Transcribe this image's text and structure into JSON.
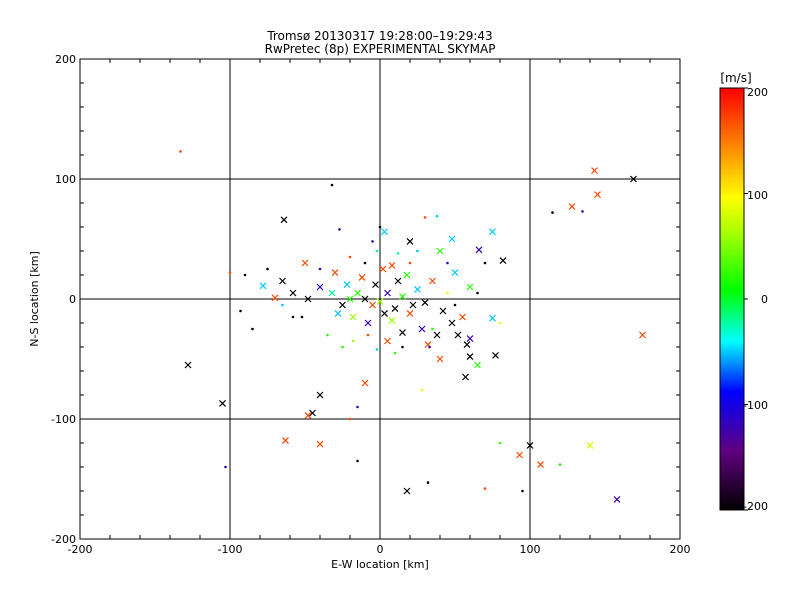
{
  "chart_data": {
    "type": "scatter",
    "title": "Tromsø 20130317 19:28:00–19:29:43",
    "subtitle": "RwPretec (8p) EXPERIMENTAL SKYMAP",
    "xlabel": "E-W location [km]",
    "ylabel": "N-S location [km]",
    "xlim": [
      -200,
      200
    ],
    "ylim": [
      -200,
      200
    ],
    "xticks": [
      "-200",
      "-100",
      "0",
      "100",
      "200"
    ],
    "yticks": [
      "-200",
      "-100",
      "0",
      "100",
      "200"
    ],
    "grid": true,
    "colorbar": {
      "label": "[m/s]",
      "min": -200,
      "max": 200,
      "ticks": [
        "200",
        "100",
        "0",
        "-100",
        "-200"
      ]
    },
    "points": [
      {
        "x": -133,
        "y": 123,
        "v": 170,
        "m": "."
      },
      {
        "x": 143,
        "y": 107,
        "v": 170,
        "m": "x"
      },
      {
        "x": 169,
        "y": 100,
        "v": -200,
        "m": "x"
      },
      {
        "x": -32,
        "y": 95,
        "v": -200,
        "m": "."
      },
      {
        "x": 145,
        "y": 87,
        "v": 170,
        "m": "x"
      },
      {
        "x": 128,
        "y": 77,
        "v": 170,
        "m": "x"
      },
      {
        "x": 135,
        "y": 73,
        "v": -120,
        "m": "."
      },
      {
        "x": 115,
        "y": 72,
        "v": -200,
        "m": "."
      },
      {
        "x": -64,
        "y": 66,
        "v": -200,
        "m": "x"
      },
      {
        "x": 30,
        "y": 68,
        "v": 170,
        "m": "."
      },
      {
        "x": 38,
        "y": 69,
        "v": -50,
        "m": "."
      },
      {
        "x": 3,
        "y": 56,
        "v": -50,
        "m": "x"
      },
      {
        "x": 75,
        "y": 56,
        "v": -50,
        "m": "x"
      },
      {
        "x": -27,
        "y": 58,
        "v": -120,
        "m": "."
      },
      {
        "x": 20,
        "y": 48,
        "v": -200,
        "m": "x"
      },
      {
        "x": 48,
        "y": 50,
        "v": -50,
        "m": "x"
      },
      {
        "x": 66,
        "y": 41,
        "v": -120,
        "m": "x"
      },
      {
        "x": 40,
        "y": 40,
        "v": 20,
        "m": "x"
      },
      {
        "x": 82,
        "y": 32,
        "v": -200,
        "m": "x"
      },
      {
        "x": -2,
        "y": 40,
        "v": -20,
        "m": "."
      },
      {
        "x": -50,
        "y": 30,
        "v": 170,
        "m": "x"
      },
      {
        "x": -65,
        "y": 15,
        "v": -200,
        "m": "x"
      },
      {
        "x": -78,
        "y": 11,
        "v": -50,
        "m": "x"
      },
      {
        "x": -90,
        "y": 20,
        "v": -200,
        "m": "."
      },
      {
        "x": -58,
        "y": 5,
        "v": -200,
        "m": "x"
      },
      {
        "x": -70,
        "y": 1,
        "v": 170,
        "m": "x"
      },
      {
        "x": -48,
        "y": 0,
        "v": -200,
        "m": "x"
      },
      {
        "x": -40,
        "y": 10,
        "v": -120,
        "m": "x"
      },
      {
        "x": -30,
        "y": 22,
        "v": 170,
        "m": "x"
      },
      {
        "x": -22,
        "y": 12,
        "v": -50,
        "m": "x"
      },
      {
        "x": -15,
        "y": 5,
        "v": 20,
        "m": "x"
      },
      {
        "x": -10,
        "y": 0,
        "v": -200,
        "m": "x"
      },
      {
        "x": -5,
        "y": -5,
        "v": 170,
        "m": "x"
      },
      {
        "x": 0,
        "y": -2,
        "v": 60,
        "m": "x"
      },
      {
        "x": 5,
        "y": 5,
        "v": -120,
        "m": "x"
      },
      {
        "x": 10,
        "y": -8,
        "v": -200,
        "m": "x"
      },
      {
        "x": 15,
        "y": 2,
        "v": 20,
        "m": "x"
      },
      {
        "x": 20,
        "y": -12,
        "v": 170,
        "m": "x"
      },
      {
        "x": 25,
        "y": 8,
        "v": -50,
        "m": "x"
      },
      {
        "x": 30,
        "y": -3,
        "v": -200,
        "m": "x"
      },
      {
        "x": 35,
        "y": 15,
        "v": 170,
        "m": "x"
      },
      {
        "x": 42,
        "y": -10,
        "v": -200,
        "m": "x"
      },
      {
        "x": 50,
        "y": 22,
        "v": -50,
        "m": "x"
      },
      {
        "x": 55,
        "y": -15,
        "v": 170,
        "m": "x"
      },
      {
        "x": 60,
        "y": 10,
        "v": 20,
        "m": "x"
      },
      {
        "x": 48,
        "y": -20,
        "v": -200,
        "m": "x"
      },
      {
        "x": 38,
        "y": -30,
        "v": -200,
        "m": "x"
      },
      {
        "x": 28,
        "y": -25,
        "v": -120,
        "m": "x"
      },
      {
        "x": 15,
        "y": -28,
        "v": -200,
        "m": "x"
      },
      {
        "x": 5,
        "y": -35,
        "v": 170,
        "m": "x"
      },
      {
        "x": -8,
        "y": -20,
        "v": -120,
        "m": "x"
      },
      {
        "x": -18,
        "y": -15,
        "v": 60,
        "m": "x"
      },
      {
        "x": -25,
        "y": -5,
        "v": -200,
        "m": "x"
      },
      {
        "x": -32,
        "y": 5,
        "v": -20,
        "m": "x"
      },
      {
        "x": -12,
        "y": 18,
        "v": 170,
        "m": "x"
      },
      {
        "x": 2,
        "y": 25,
        "v": 170,
        "m": "x"
      },
      {
        "x": 8,
        "y": 28,
        "v": 170,
        "m": "x"
      },
      {
        "x": 12,
        "y": 15,
        "v": -200,
        "m": "x"
      },
      {
        "x": 18,
        "y": 20,
        "v": 20,
        "m": "x"
      },
      {
        "x": -3,
        "y": 12,
        "v": -200,
        "m": "x"
      },
      {
        "x": 3,
        "y": -12,
        "v": -200,
        "m": "x"
      },
      {
        "x": 8,
        "y": -18,
        "v": 60,
        "m": "x"
      },
      {
        "x": -20,
        "y": 0,
        "v": 20,
        "m": "x"
      },
      {
        "x": -28,
        "y": -12,
        "v": -50,
        "m": "x"
      },
      {
        "x": 22,
        "y": -5,
        "v": -200,
        "m": "x"
      },
      {
        "x": 32,
        "y": -38,
        "v": 170,
        "m": "x"
      },
      {
        "x": 58,
        "y": -38,
        "v": -200,
        "m": "x"
      },
      {
        "x": 52,
        "y": -30,
        "v": -200,
        "m": "x"
      },
      {
        "x": 60,
        "y": -48,
        "v": -200,
        "m": "x"
      },
      {
        "x": 65,
        "y": -55,
        "v": 20,
        "m": "x"
      },
      {
        "x": 57,
        "y": -65,
        "v": -200,
        "m": "x"
      },
      {
        "x": 77,
        "y": -47,
        "v": -200,
        "m": "x"
      },
      {
        "x": 75,
        "y": -16,
        "v": -50,
        "m": "x"
      },
      {
        "x": 40,
        "y": -50,
        "v": 170,
        "m": "x"
      },
      {
        "x": 60,
        "y": -33,
        "v": -120,
        "m": "x"
      },
      {
        "x": 175,
        "y": -30,
        "v": 170,
        "m": "x"
      },
      {
        "x": -128,
        "y": -55,
        "v": -200,
        "m": "x"
      },
      {
        "x": -105,
        "y": -87,
        "v": -200,
        "m": "x"
      },
      {
        "x": -10,
        "y": -70,
        "v": 170,
        "m": "x"
      },
      {
        "x": -40,
        "y": -80,
        "v": -200,
        "m": "x"
      },
      {
        "x": -45,
        "y": -95,
        "v": -200,
        "m": "x"
      },
      {
        "x": -48,
        "y": -97,
        "v": 170,
        "m": "x"
      },
      {
        "x": -63,
        "y": -118,
        "v": 170,
        "m": "x"
      },
      {
        "x": -40,
        "y": -121,
        "v": 170,
        "m": "x"
      },
      {
        "x": 100,
        "y": -122,
        "v": -200,
        "m": "x"
      },
      {
        "x": 93,
        "y": -130,
        "v": 170,
        "m": "x"
      },
      {
        "x": 107,
        "y": -138,
        "v": 170,
        "m": "x"
      },
      {
        "x": 140,
        "y": -122,
        "v": 80,
        "m": "x"
      },
      {
        "x": 18,
        "y": -160,
        "v": -200,
        "m": "x"
      },
      {
        "x": 158,
        "y": -167,
        "v": -120,
        "m": "x"
      },
      {
        "x": -103,
        "y": -140,
        "v": -120,
        "m": "."
      },
      {
        "x": 80,
        "y": -120,
        "v": 20,
        "m": "."
      },
      {
        "x": 120,
        "y": -138,
        "v": 20,
        "m": "."
      },
      {
        "x": 95,
        "y": -160,
        "v": -200,
        "m": "."
      },
      {
        "x": 32,
        "y": -153,
        "v": -200,
        "m": "."
      },
      {
        "x": -20,
        "y": -100,
        "v": 170,
        "m": "."
      },
      {
        "x": -15,
        "y": -90,
        "v": -120,
        "m": "."
      },
      {
        "x": -15,
        "y": -135,
        "v": -200,
        "m": "."
      },
      {
        "x": 70,
        "y": -158,
        "v": 170,
        "m": "."
      },
      {
        "x": -85,
        "y": -25,
        "v": -200,
        "m": "."
      },
      {
        "x": -93,
        "y": -10,
        "v": -200,
        "m": "."
      },
      {
        "x": -58,
        "y": -15,
        "v": -200,
        "m": "."
      },
      {
        "x": -52,
        "y": -15,
        "v": -200,
        "m": "."
      },
      {
        "x": 28,
        "y": -76,
        "v": 100,
        "m": "."
      },
      {
        "x": 70,
        "y": 30,
        "v": -200,
        "m": "."
      },
      {
        "x": 80,
        "y": -20,
        "v": 100,
        "m": "."
      },
      {
        "x": 12,
        "y": 38,
        "v": -20,
        "m": "."
      },
      {
        "x": -5,
        "y": 48,
        "v": -120,
        "m": "."
      },
      {
        "x": -20,
        "y": 35,
        "v": 170,
        "m": "."
      },
      {
        "x": 45,
        "y": 30,
        "v": -120,
        "m": "."
      },
      {
        "x": -35,
        "y": -30,
        "v": 20,
        "m": "."
      },
      {
        "x": -25,
        "y": -40,
        "v": 20,
        "m": "."
      },
      {
        "x": 10,
        "y": -45,
        "v": 20,
        "m": "."
      },
      {
        "x": -18,
        "y": -35,
        "v": 60,
        "m": "."
      },
      {
        "x": 35,
        "y": -25,
        "v": 20,
        "m": "."
      },
      {
        "x": -40,
        "y": 25,
        "v": -120,
        "m": "."
      },
      {
        "x": 20,
        "y": 30,
        "v": 170,
        "m": "."
      },
      {
        "x": -8,
        "y": -30,
        "v": 170,
        "m": "."
      },
      {
        "x": 65,
        "y": 5,
        "v": -200,
        "m": "."
      },
      {
        "x": 45,
        "y": 5,
        "v": 100,
        "m": "."
      },
      {
        "x": -65,
        "y": -5,
        "v": -50,
        "m": "."
      },
      {
        "x": -100,
        "y": 22,
        "v": 170,
        "m": "."
      },
      {
        "x": -75,
        "y": 25,
        "v": -200,
        "m": "."
      },
      {
        "x": 0,
        "y": 60,
        "v": -200,
        "m": "."
      },
      {
        "x": 25,
        "y": 40,
        "v": -50,
        "m": "."
      },
      {
        "x": 50,
        "y": -5,
        "v": -200,
        "m": "."
      },
      {
        "x": -10,
        "y": 30,
        "v": -200,
        "m": "."
      },
      {
        "x": 15,
        "y": -40,
        "v": -200,
        "m": "."
      },
      {
        "x": 33,
        "y": -40,
        "v": -120,
        "m": "."
      },
      {
        "x": -2,
        "y": -42,
        "v": -50,
        "m": "."
      }
    ]
  }
}
